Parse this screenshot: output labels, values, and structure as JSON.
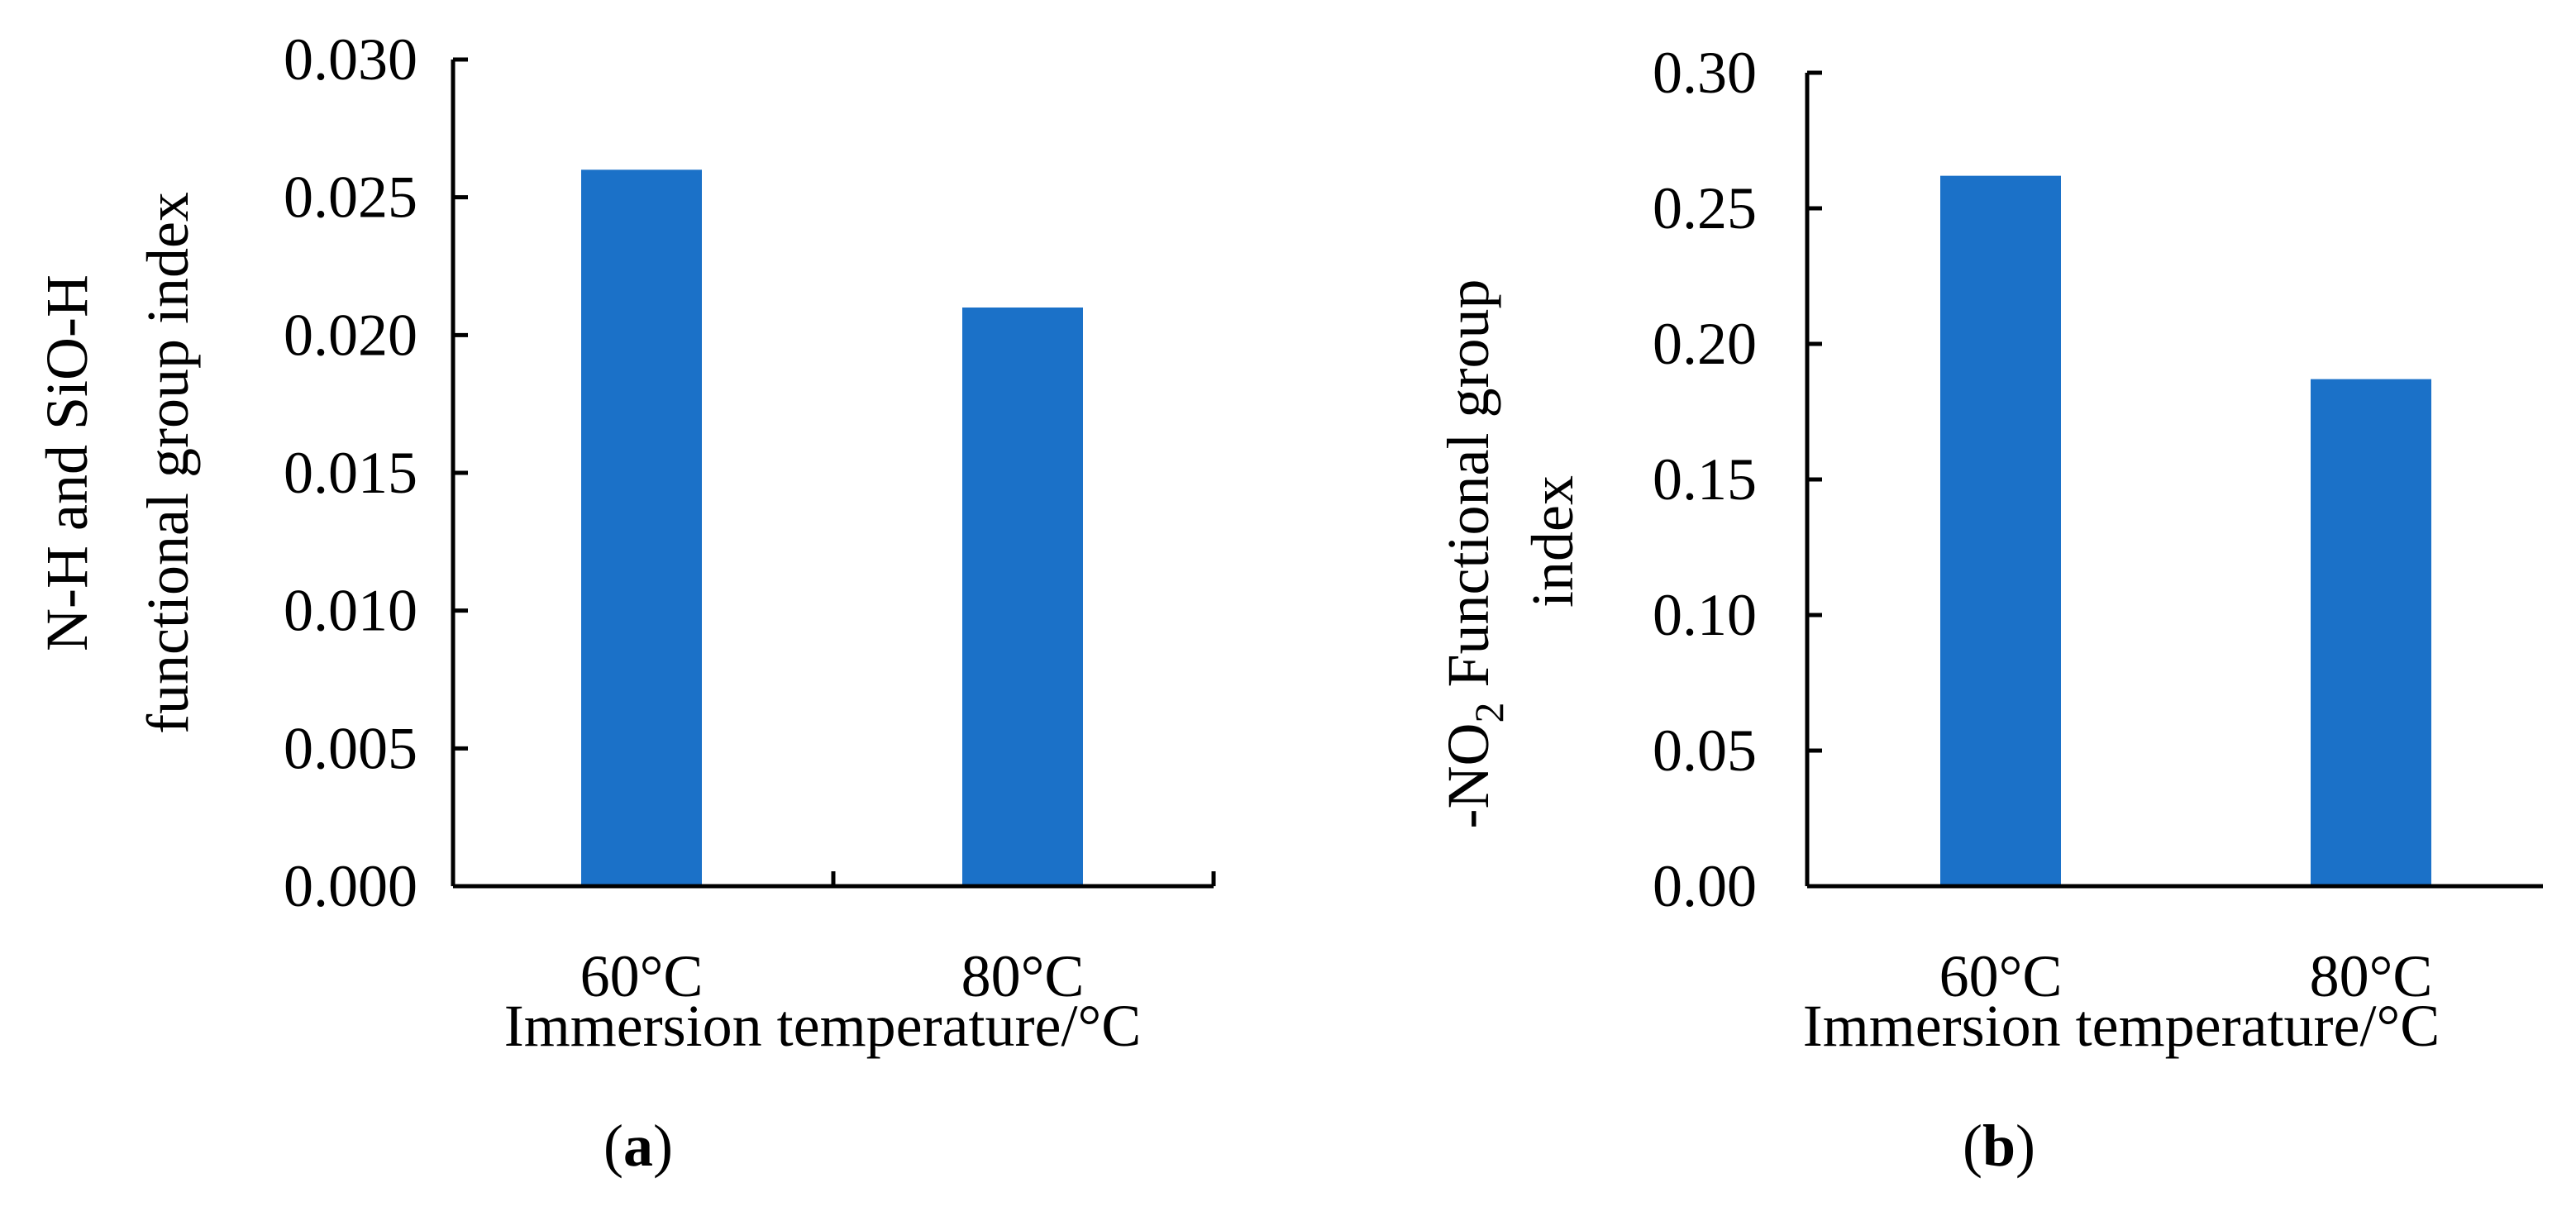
{
  "colors": {
    "bar": "#1B71C8",
    "axis": "#000000"
  },
  "chart_data": [
    {
      "type": "bar",
      "panel": "a",
      "title": "",
      "categories": [
        "60°C",
        "80°C"
      ],
      "values": [
        0.026,
        0.021
      ],
      "xlabel": "Immersion temperature/°C",
      "ylabel_lines": [
        "N-H and SiO-H",
        "functional group index"
      ],
      "ylim": [
        0,
        0.03
      ],
      "yticks": [
        0.0,
        0.005,
        0.01,
        0.015,
        0.02,
        0.025,
        0.03
      ],
      "ytick_labels": [
        "0.000",
        "0.005",
        "0.010",
        "0.015",
        "0.020",
        "0.025",
        "0.030"
      ],
      "grid": false,
      "caption": {
        "open": "(",
        "letter": "a",
        "close": ")"
      }
    },
    {
      "type": "bar",
      "panel": "b",
      "title": "",
      "categories": [
        "60°C",
        "80°C"
      ],
      "values": [
        0.262,
        0.187
      ],
      "xlabel": "Immersion temperature/°C",
      "ylabel_parts": {
        "prefix": "-NO",
        "subscript": "2",
        "suffix": " Functional group"
      },
      "ylabel_line2": "index",
      "ylim": [
        0,
        0.3
      ],
      "yticks": [
        0.0,
        0.05,
        0.1,
        0.15,
        0.2,
        0.25,
        0.3
      ],
      "ytick_labels": [
        "0.00",
        "0.05",
        "0.10",
        "0.15",
        "0.20",
        "0.25",
        "0.30"
      ],
      "grid": false,
      "caption": {
        "open": "(",
        "letter": "b",
        "close": ")"
      }
    }
  ]
}
